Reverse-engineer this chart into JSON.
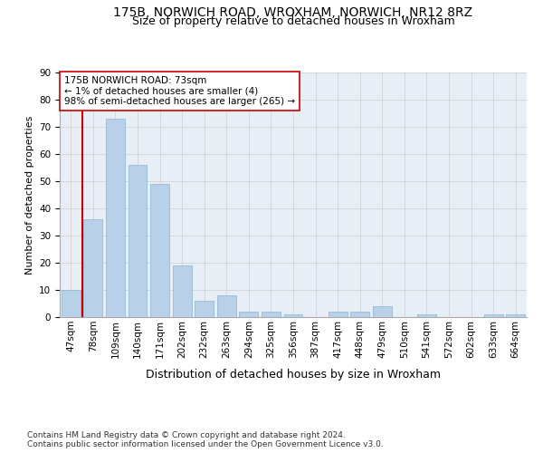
{
  "title": "175B, NORWICH ROAD, WROXHAM, NORWICH, NR12 8RZ",
  "subtitle": "Size of property relative to detached houses in Wroxham",
  "xlabel": "Distribution of detached houses by size in Wroxham",
  "ylabel": "Number of detached properties",
  "categories": [
    "47sqm",
    "78sqm",
    "109sqm",
    "140sqm",
    "171sqm",
    "202sqm",
    "232sqm",
    "263sqm",
    "294sqm",
    "325sqm",
    "356sqm",
    "387sqm",
    "417sqm",
    "448sqm",
    "479sqm",
    "510sqm",
    "541sqm",
    "572sqm",
    "602sqm",
    "633sqm",
    "664sqm"
  ],
  "values": [
    10,
    36,
    73,
    56,
    49,
    19,
    6,
    8,
    2,
    2,
    1,
    0,
    2,
    2,
    4,
    0,
    1,
    0,
    0,
    1,
    1
  ],
  "bar_color": "#b8d0e8",
  "bar_edge_color": "#8ab4d0",
  "red_line_color": "#cc0000",
  "annotation_text": "175B NORWICH ROAD: 73sqm\n← 1% of detached houses are smaller (4)\n98% of semi-detached houses are larger (265) →",
  "annotation_box_color": "#ffffff",
  "annotation_box_edge": "#cc0000",
  "ylim": [
    0,
    90
  ],
  "yticks": [
    0,
    10,
    20,
    30,
    40,
    50,
    60,
    70,
    80,
    90
  ],
  "plot_bg_color": "#e8eef5",
  "footer_text": "Contains HM Land Registry data © Crown copyright and database right 2024.\nContains public sector information licensed under the Open Government Licence v3.0.",
  "title_fontsize": 10,
  "subtitle_fontsize": 9,
  "xlabel_fontsize": 9,
  "ylabel_fontsize": 8,
  "tick_fontsize": 7.5,
  "annotation_fontsize": 7.5,
  "footer_fontsize": 6.5
}
